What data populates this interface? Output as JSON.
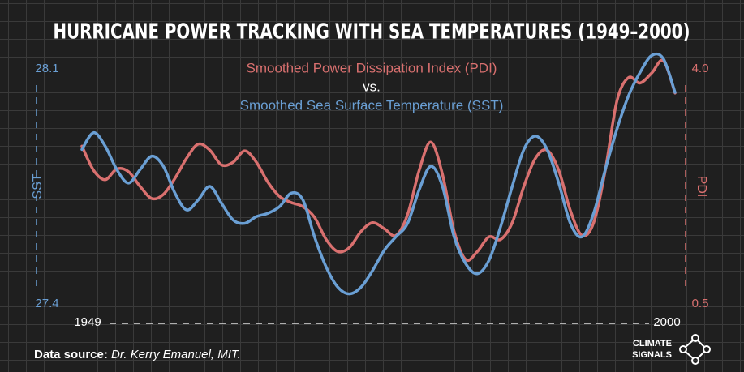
{
  "chart_data": {
    "type": "line",
    "title": "HURRICANE POWER TRACKING WITH SEA TEMPERATURES (1949–2000)",
    "subtitle": [
      "Smoothed Power Dissipation Index (PDI)",
      "vs.",
      "Smoothed Sea Surface Temperature (SST)"
    ],
    "x": [
      1949,
      1950,
      1951,
      1952,
      1953,
      1954,
      1955,
      1956,
      1957,
      1958,
      1959,
      1960,
      1961,
      1962,
      1963,
      1964,
      1965,
      1966,
      1967,
      1968,
      1969,
      1970,
      1971,
      1972,
      1973,
      1974,
      1975,
      1976,
      1977,
      1978,
      1979,
      1980,
      1981,
      1982,
      1983,
      1984,
      1985,
      1986,
      1987,
      1988,
      1989,
      1990,
      1991,
      1992,
      1993,
      1994,
      1995,
      1996,
      1997,
      1998,
      1999,
      2000
    ],
    "xlim": [
      1949,
      2000
    ],
    "xticks": [
      1949,
      2000
    ],
    "ylim": [
      27.4,
      28.1
    ],
    "yticks": [
      27.4,
      28.1
    ],
    "y2lim": [
      0.5,
      4.0
    ],
    "y2ticks": [
      0.5,
      {
        "value": 4.0,
        "label": "4.0"
      }
    ],
    "series": [
      {
        "name": "SST",
        "color": "#6a9fd4",
        "axis": "y",
        "values": [
          27.86,
          27.91,
          27.87,
          27.8,
          27.76,
          27.8,
          27.84,
          27.81,
          27.73,
          27.68,
          27.71,
          27.75,
          27.7,
          27.65,
          27.64,
          27.66,
          27.67,
          27.69,
          27.73,
          27.71,
          27.6,
          27.51,
          27.45,
          27.43,
          27.45,
          27.5,
          27.56,
          27.6,
          27.64,
          27.74,
          27.81,
          27.75,
          27.6,
          27.52,
          27.49,
          27.53,
          27.63,
          27.75,
          27.86,
          27.9,
          27.86,
          27.76,
          27.64,
          27.6,
          27.67,
          27.8,
          27.92,
          28.02,
          28.09,
          28.14,
          28.13,
          28.03
        ]
      },
      {
        "name": "PDI",
        "color": "#d9706f",
        "axis": "y2",
        "values": [
          2.85,
          2.49,
          2.35,
          2.51,
          2.47,
          2.25,
          2.07,
          2.13,
          2.37,
          2.67,
          2.88,
          2.79,
          2.57,
          2.61,
          2.78,
          2.61,
          2.31,
          2.1,
          2.01,
          1.95,
          1.79,
          1.46,
          1.28,
          1.34,
          1.58,
          1.71,
          1.62,
          1.52,
          1.83,
          2.49,
          2.91,
          2.43,
          1.58,
          1.16,
          1.28,
          1.5,
          1.46,
          1.71,
          2.25,
          2.67,
          2.79,
          2.49,
          1.89,
          1.52,
          1.71,
          2.49,
          3.52,
          3.87,
          3.79,
          3.94,
          4.12,
          3.64
        ]
      }
    ],
    "source_label": "Data source:",
    "source": "Dr. Kerry Emanuel, MIT.",
    "logo": [
      "CLIMATE",
      "SIGNALS"
    ]
  }
}
